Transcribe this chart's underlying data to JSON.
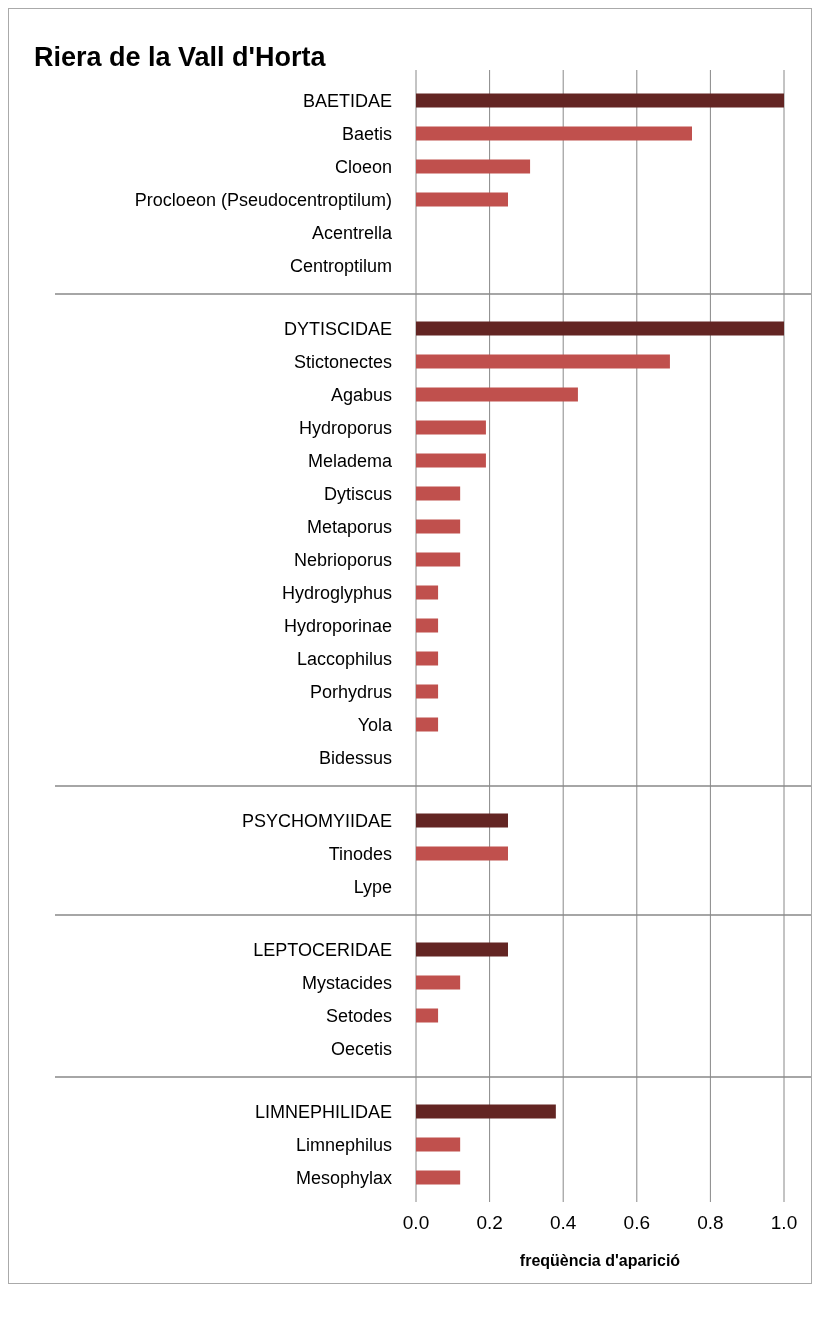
{
  "chart_data": [
    {
      "type": "bar",
      "orientation": "horizontal",
      "title": "Riera de la Vall d'Horta",
      "categories": [
        "BAETIDAE",
        "Baetis",
        "Cloeon",
        "Procloeon (Pseudocentroptilum)",
        "Acentrella",
        "Centroptilum"
      ],
      "values": [
        1.0,
        0.75,
        0.31,
        0.25,
        0,
        0
      ],
      "colors": [
        "#632523",
        "#c0504d",
        "#c0504d",
        "#c0504d",
        "#c0504d",
        "#c0504d"
      ],
      "xlim": [
        0,
        1
      ],
      "xticks": [
        0,
        0.2,
        0.4,
        0.6,
        0.8,
        1.0
      ],
      "grid": "x",
      "tick_labels": "y"
    },
    {
      "type": "bar",
      "orientation": "horizontal",
      "categories": [
        "DYTISCIDAE",
        "Stictonectes",
        "Agabus",
        "Hydroporus",
        "Meladema",
        "Dytiscus",
        "Metaporus",
        "Nebrioporus",
        "Hydroglyphus",
        "Hydroporinae",
        "Laccophilus",
        "Porhydrus",
        "Yola",
        "Bidessus"
      ],
      "values": [
        1.0,
        0.69,
        0.44,
        0.19,
        0.19,
        0.12,
        0.12,
        0.12,
        0.06,
        0.06,
        0.06,
        0.06,
        0.06,
        0
      ],
      "colors": [
        "#632523",
        "#c0504d",
        "#c0504d",
        "#c0504d",
        "#c0504d",
        "#c0504d",
        "#c0504d",
        "#c0504d",
        "#c0504d",
        "#c0504d",
        "#c0504d",
        "#c0504d",
        "#c0504d",
        "#c0504d"
      ],
      "xlim": [
        0,
        1
      ],
      "xticks": [
        0,
        0.2,
        0.4,
        0.6,
        0.8,
        1.0
      ],
      "grid": "x",
      "tick_labels": "y"
    },
    {
      "type": "bar",
      "orientation": "horizontal",
      "categories": [
        "PSYCHOMYIIDAE",
        "Tinodes",
        "Lype"
      ],
      "values": [
        0.25,
        0.25,
        0
      ],
      "colors": [
        "#632523",
        "#c0504d",
        "#c0504d"
      ],
      "xlim": [
        0,
        1
      ],
      "xticks": [
        0,
        0.2,
        0.4,
        0.6,
        0.8,
        1.0
      ],
      "grid": "x",
      "tick_labels": "y"
    },
    {
      "type": "bar",
      "orientation": "horizontal",
      "categories": [
        "LEPTOCERIDAE",
        "Mystacides",
        "Setodes",
        "Oecetis"
      ],
      "values": [
        0.25,
        0.12,
        0.06,
        0
      ],
      "colors": [
        "#632523",
        "#c0504d",
        "#c0504d",
        "#c0504d"
      ],
      "xlim": [
        0,
        1
      ],
      "xticks": [
        0,
        0.2,
        0.4,
        0.6,
        0.8,
        1.0
      ],
      "grid": "x",
      "tick_labels": "y"
    },
    {
      "type": "bar",
      "orientation": "horizontal",
      "xlabel": "freqüència d'aparició",
      "categories": [
        "LIMNEPHILIDAE",
        "Limnephilus",
        "Mesophylax"
      ],
      "values": [
        0.38,
        0.12,
        0.12
      ],
      "colors": [
        "#632523",
        "#c0504d",
        "#c0504d"
      ],
      "xlim": [
        0,
        1
      ],
      "xticks": [
        {
          "value": 0,
          "label": "0.0"
        },
        0.2,
        0.4,
        0.6,
        0.8,
        {
          "value": 1,
          "label": "1.0"
        }
      ],
      "grid": "x"
    }
  ]
}
